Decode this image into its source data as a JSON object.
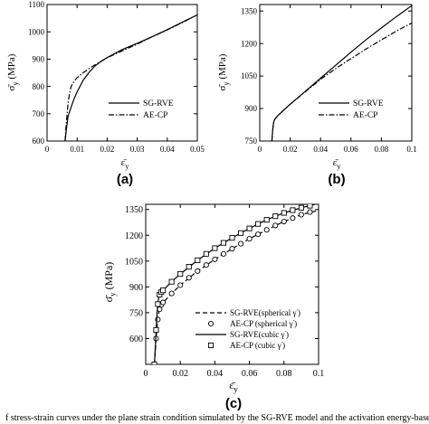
{
  "caption": "f stress-strain curves under the plane strain condition simulated by the SG-RVE model and the activation energy-based crystal plasticity",
  "chart_data": [
    {
      "type": "line",
      "panel_label": "(a)",
      "xlabel": "ε̄y",
      "ylabel": "σ̄y (MPa)",
      "xlim": [
        0,
        0.05
      ],
      "ylim": [
        600,
        1100
      ],
      "xticks": [
        0,
        0.01,
        0.02,
        0.03,
        0.04,
        0.05
      ],
      "xtick_labels": [
        "0",
        "0.01",
        "0.02",
        "0.03",
        "0.04",
        "0.05"
      ],
      "yticks": [
        600,
        700,
        800,
        900,
        1000,
        1100
      ],
      "ytick_labels": [
        "600",
        "700",
        "800",
        "900",
        "1000",
        "1100"
      ],
      "grid": false,
      "legend_position": "center-right",
      "series": [
        {
          "name": "SG-RVE",
          "style": "solid",
          "x": [
            0.006,
            0.0065,
            0.007,
            0.008,
            0.009,
            0.01,
            0.012,
            0.014,
            0.016,
            0.018,
            0.02,
            0.025,
            0.03,
            0.035,
            0.04,
            0.045,
            0.05
          ],
          "y": [
            600,
            650,
            690,
            725,
            755,
            780,
            822,
            852,
            875,
            892,
            906,
            935,
            958,
            982,
            1008,
            1035,
            1062
          ]
        },
        {
          "name": "AE-CP",
          "style": "dash-dot",
          "x": [
            0.006,
            0.0063,
            0.0067,
            0.007,
            0.0075,
            0.008,
            0.009,
            0.01,
            0.012,
            0.015,
            0.02,
            0.025,
            0.03,
            0.035,
            0.04,
            0.045,
            0.05
          ],
          "y": [
            600,
            650,
            700,
            740,
            775,
            800,
            820,
            832,
            850,
            873,
            905,
            930,
            955,
            982,
            1007,
            1034,
            1062
          ]
        }
      ]
    },
    {
      "type": "line",
      "panel_label": "(b)",
      "xlabel": "ε̄y",
      "ylabel": "σ̄y (MPa)",
      "xlim": [
        0,
        0.1
      ],
      "ylim": [
        750,
        1380
      ],
      "xticks": [
        0,
        0.02,
        0.04,
        0.06,
        0.08,
        0.1
      ],
      "xtick_labels": [
        "0",
        "0.02",
        "0.04",
        "0.06",
        "0.08",
        "0.1"
      ],
      "yticks": [
        750,
        900,
        1050,
        1200,
        1350
      ],
      "ytick_labels": [
        "750",
        "900",
        "1050",
        "1200",
        "1350"
      ],
      "grid": false,
      "legend_position": "center-right",
      "series": [
        {
          "name": "SG-RVE",
          "style": "solid",
          "x": [
            0.008,
            0.0085,
            0.009,
            0.0095,
            0.01,
            0.012,
            0.015,
            0.02,
            0.03,
            0.04,
            0.05,
            0.06,
            0.07,
            0.08,
            0.09,
            0.1
          ],
          "y": [
            750,
            800,
            830,
            845,
            852,
            868,
            888,
            920,
            980,
            1040,
            1100,
            1160,
            1218,
            1272,
            1325,
            1375
          ]
        },
        {
          "name": "AE-CP",
          "style": "dash-dot",
          "x": [
            0.008,
            0.0085,
            0.009,
            0.0095,
            0.01,
            0.012,
            0.015,
            0.02,
            0.03,
            0.04,
            0.05,
            0.06,
            0.07,
            0.08,
            0.09,
            0.1
          ],
          "y": [
            750,
            800,
            830,
            845,
            852,
            868,
            888,
            920,
            978,
            1035,
            1085,
            1130,
            1175,
            1217,
            1258,
            1295
          ]
        }
      ]
    },
    {
      "type": "line",
      "panel_label": "(c)",
      "xlabel": "ε̄y",
      "ylabel": "σ̄y (MPa)",
      "xlim": [
        0,
        0.1
      ],
      "ylim": [
        450,
        1380
      ],
      "xticks": [
        0,
        0.02,
        0.04,
        0.06,
        0.08,
        0.1
      ],
      "xtick_labels": [
        "0",
        "0.02",
        "0.04",
        "0.06",
        "0.08",
        "0.1"
      ],
      "yticks": [
        600,
        750,
        900,
        1050,
        1200,
        1350
      ],
      "ytick_labels": [
        "600",
        "750",
        "900",
        "1050",
        "1200",
        "1350"
      ],
      "grid": false,
      "legend_position": "bottom-right",
      "series": [
        {
          "name": "SG-RVE(spherical γ')",
          "style": "dashed",
          "x": [
            0.005,
            0.0055,
            0.006,
            0.0065,
            0.007,
            0.0075,
            0.008,
            0.009,
            0.01,
            0.015,
            0.02,
            0.03,
            0.04,
            0.05,
            0.06,
            0.07,
            0.08,
            0.09,
            0.1
          ],
          "y": [
            450,
            520,
            600,
            660,
            710,
            745,
            770,
            793,
            808,
            862,
            910,
            992,
            1060,
            1122,
            1180,
            1232,
            1280,
            1320,
            1345
          ]
        },
        {
          "name": "AE-CP  (spherical γ')",
          "style": "circle-markers",
          "x": [
            0.005,
            0.006,
            0.007,
            0.008,
            0.009,
            0.01,
            0.015,
            0.02,
            0.025,
            0.03,
            0.035,
            0.04,
            0.045,
            0.05,
            0.055,
            0.06,
            0.065,
            0.07,
            0.075,
            0.08,
            0.085,
            0.09,
            0.095
          ],
          "y": [
            450,
            600,
            710,
            770,
            795,
            810,
            862,
            910,
            953,
            992,
            1027,
            1060,
            1092,
            1122,
            1151,
            1180,
            1206,
            1232,
            1257,
            1280,
            1300,
            1320,
            1335
          ]
        },
        {
          "name": "SG-RVE(cubic γ')",
          "style": "solid",
          "x": [
            0.005,
            0.0055,
            0.006,
            0.0065,
            0.007,
            0.0075,
            0.008,
            0.009,
            0.01,
            0.015,
            0.02,
            0.03,
            0.04,
            0.05,
            0.06,
            0.07,
            0.08,
            0.09,
            0.1
          ],
          "y": [
            450,
            540,
            650,
            740,
            800,
            835,
            855,
            870,
            880,
            930,
            975,
            1055,
            1125,
            1185,
            1240,
            1290,
            1330,
            1360,
            1385
          ]
        },
        {
          "name": "AE-CP  (cubic γ')",
          "style": "square-markers",
          "x": [
            0.005,
            0.006,
            0.007,
            0.008,
            0.009,
            0.01,
            0.015,
            0.02,
            0.025,
            0.03,
            0.035,
            0.04,
            0.045,
            0.05,
            0.055,
            0.06,
            0.065,
            0.07,
            0.075,
            0.08,
            0.085,
            0.09,
            0.095
          ],
          "y": [
            450,
            650,
            800,
            855,
            870,
            880,
            930,
            975,
            1017,
            1055,
            1092,
            1125,
            1156,
            1185,
            1213,
            1240,
            1266,
            1290,
            1311,
            1330,
            1346,
            1360,
            1372
          ]
        }
      ]
    }
  ]
}
